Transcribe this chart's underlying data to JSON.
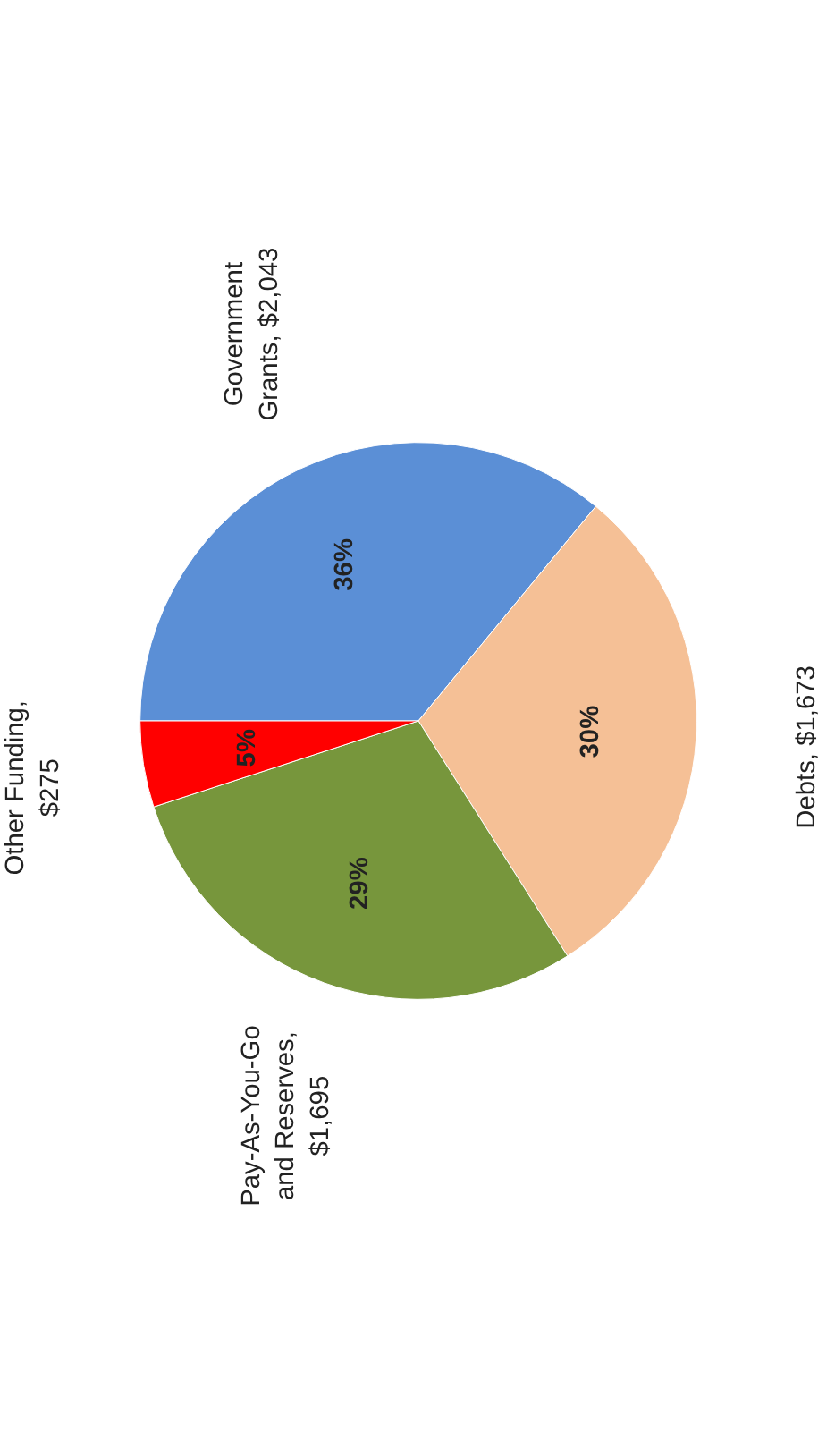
{
  "chart_data": {
    "type": "pie",
    "categories": [
      "Government Grants, $2,043",
      "Debts, $1,673",
      "Pay-As-You-Go and Reserves, $1,695",
      "Other Funding, $275"
    ],
    "values": [
      36,
      30,
      29,
      5
    ],
    "colors": [
      "#5b8fd6",
      "#f5c096",
      "#77963c",
      "#ff0000"
    ],
    "value_labels": [
      "36%",
      "30%",
      "29%",
      "5%"
    ]
  }
}
